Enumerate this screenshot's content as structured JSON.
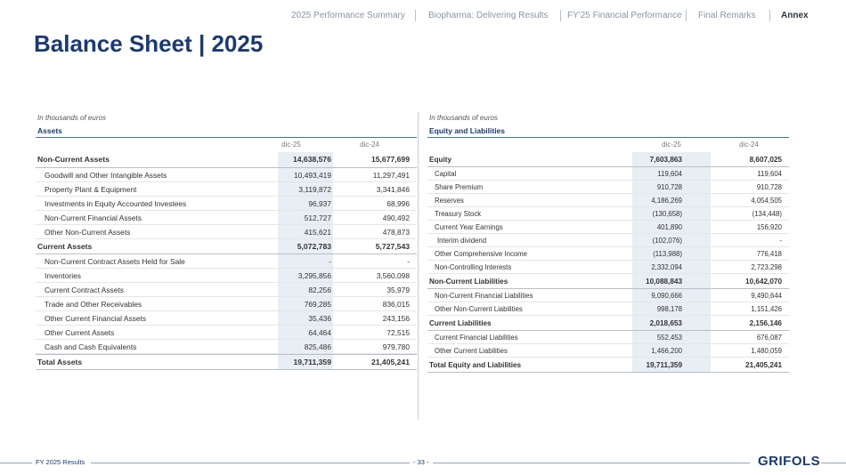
{
  "nav": {
    "items": [
      {
        "label": "2025 Performance Summary",
        "active": false
      },
      {
        "label": "Biopharma: Delivering Results",
        "active": false
      },
      {
        "label": "FY'25 Financial Performance",
        "active": false
      },
      {
        "label": "Final Remarks",
        "active": false
      },
      {
        "label": "Annex",
        "active": true
      }
    ]
  },
  "title": "Balance Sheet | 2025",
  "assets": {
    "units": "In thousands of euros",
    "heading": "Assets",
    "col1": "dic-25",
    "col2": "dic-24",
    "rows": [
      {
        "label": "Non-Current Assets",
        "v1": "14,638,576",
        "v2": "15,677,699",
        "total": true
      },
      {
        "label": "Goodwill and Other Intangible Assets",
        "v1": "10,493,419",
        "v2": "11,297,491"
      },
      {
        "label": "Property Plant & Equipment",
        "v1": "3,119,872",
        "v2": "3,341,846"
      },
      {
        "label": "Investments in Equity Accounted Investees",
        "v1": "96,937",
        "v2": "68,996"
      },
      {
        "label": "Non-Current Financial Assets",
        "v1": "512,727",
        "v2": "490,492"
      },
      {
        "label": "Other Non-Current Assets",
        "v1": "415,621",
        "v2": "478,873"
      },
      {
        "label": "Current Assets",
        "v1": "5,072,783",
        "v2": "5,727,543",
        "total": true
      },
      {
        "label": "Non-Current Contract Assets Held for Sale",
        "v1": "-",
        "v2": "-"
      },
      {
        "label": "Inventories",
        "v1": "3,295,856",
        "v2": "3,560,098"
      },
      {
        "label": "Current Contract Assets",
        "v1": "82,256",
        "v2": "35,979"
      },
      {
        "label": "Trade and Other Receivables",
        "v1": "769,285",
        "v2": "836,015"
      },
      {
        "label": "Other Current Financial Assets",
        "v1": "35,436",
        "v2": "243,156"
      },
      {
        "label": "Other Current Assets",
        "v1": "64,464",
        "v2": "72,515"
      },
      {
        "label": "Cash and Cash Equivalents",
        "v1": "825,486",
        "v2": "979,780"
      },
      {
        "label": "Total Assets",
        "v1": "19,711,359",
        "v2": "21,405,241",
        "total": true,
        "grand": true
      }
    ]
  },
  "liabilities": {
    "units": "In thousands of euros",
    "heading": "Equity and Liabilities",
    "col1": "dic-25",
    "col2": "dic-24",
    "rows": [
      {
        "label": "Equity",
        "v1": "7,603,863",
        "v2": "8,607,025",
        "total": true
      },
      {
        "label": "Capital",
        "v1": "119,604",
        "v2": "119,604"
      },
      {
        "label": "Share Premium",
        "v1": "910,728",
        "v2": "910,728"
      },
      {
        "label": "Reserves",
        "v1": "4,186,269",
        "v2": "4,054,505"
      },
      {
        "label": "Treasury Stock",
        "v1": "(130,658)",
        "v2": "(134,448)"
      },
      {
        "label": "Current Year Earnings",
        "v1": "401,890",
        "v2": "156,920"
      },
      {
        "label": "Interim dividend",
        "v1": "(102,076)",
        "v2": "-",
        "deep": true
      },
      {
        "label": "Other Comprehensive Income",
        "v1": "(113,988)",
        "v2": "776,418"
      },
      {
        "label": "Non-Controlling Interests",
        "v1": "2,332,094",
        "v2": "2,723,298"
      },
      {
        "label": "Non-Current Liabilities",
        "v1": "10,088,843",
        "v2": "10,642,070",
        "total": true
      },
      {
        "label": "Non-Current Financial Liabilities",
        "v1": "9,090,666",
        "v2": "9,490,644"
      },
      {
        "label": "Other Non-Current Liabilities",
        "v1": "998,178",
        "v2": "1,151,426"
      },
      {
        "label": "Current Liabilities",
        "v1": "2,018,653",
        "v2": "2,156,146",
        "total": true
      },
      {
        "label": "Current Financial Liabilities",
        "v1": "552,453",
        "v2": "676,087"
      },
      {
        "label": "Other Current Liabilities",
        "v1": "1,466,200",
        "v2": "1,480,059"
      },
      {
        "label": "Total Equity and Liabilities",
        "v1": "19,711,359",
        "v2": "21,405,241",
        "total": true
      }
    ]
  },
  "footer": {
    "left": "FY 2025 Results",
    "page": "- 33 -",
    "logo": "GRIFOLS"
  }
}
